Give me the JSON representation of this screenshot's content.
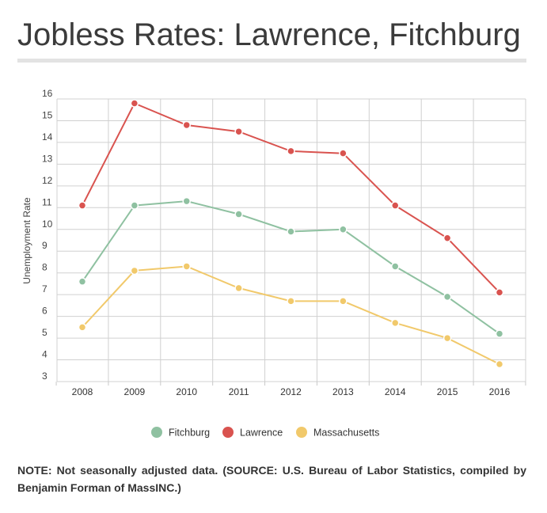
{
  "title": "Jobless Rates: Lawrence, Fitchburg",
  "note": "NOTE: Not seasonally adjusted data. (SOURCE: U.S. Bureau of Labor Statistics, compiled by Benjamin Forman of MassINC.)",
  "chart_data": {
    "type": "line",
    "title": "Jobless Rates: Lawrence, Fitchburg",
    "xlabel": "",
    "ylabel": "Unemployment Rate",
    "x": [
      "2008",
      "2009",
      "2010",
      "2011",
      "2012",
      "2013",
      "2014",
      "2015",
      "2016"
    ],
    "ylim": [
      3,
      16
    ],
    "yticks": [
      "3",
      "4",
      "5",
      "6",
      "7",
      "8",
      "9",
      "10",
      "11",
      "12",
      "13",
      "14",
      "15",
      "16"
    ],
    "grid": true,
    "legend_position": "bottom",
    "series": [
      {
        "name": "Fitchburg",
        "color": "#8fc1a1",
        "values": [
          7.6,
          11.1,
          11.3,
          10.7,
          9.9,
          10.0,
          8.3,
          6.9,
          5.2
        ]
      },
      {
        "name": "Lawrence",
        "color": "#d9534f",
        "values": [
          11.1,
          15.8,
          14.8,
          14.5,
          13.6,
          13.5,
          11.1,
          9.6,
          7.1
        ]
      },
      {
        "name": "Massachusetts",
        "color": "#f1c96b",
        "values": [
          5.5,
          8.1,
          8.3,
          7.3,
          6.7,
          6.7,
          5.7,
          5.0,
          3.8
        ]
      }
    ]
  }
}
